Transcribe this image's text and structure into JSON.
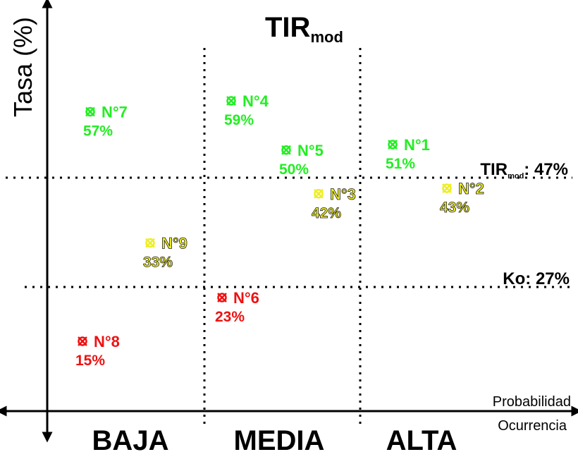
{
  "chart_data": {
    "type": "scatter",
    "title": "TIR",
    "title_subscript": "mod",
    "ylabel": "Tasa (%)",
    "xlabel_top": "Probabilidad",
    "xlabel_bottom": "Ocurrencia",
    "categories": [
      "BAJA",
      "MEDIA",
      "ALTA"
    ],
    "reference_lines": [
      {
        "name": "TIR",
        "subscript": "mod",
        "suffix": ": 47%",
        "value": 47
      },
      {
        "name": "Ko",
        "subscript": "",
        "suffix": ": 27%",
        "value": 27
      }
    ],
    "colors": {
      "high": "#22ee22",
      "mid": "#eeee22",
      "low": "#ee1111"
    },
    "points": [
      {
        "label": "N°1",
        "category": "ALTA",
        "rate": 51,
        "value_label": "51%",
        "color": "#22ee22"
      },
      {
        "label": "N°2",
        "category": "ALTA",
        "rate": 43,
        "value_label": "43%",
        "color": "#eeee22"
      },
      {
        "label": "N°3",
        "category": "MEDIA",
        "rate": 42,
        "value_label": "42%",
        "color": "#eeee22"
      },
      {
        "label": "N°4",
        "category": "MEDIA",
        "rate": 59,
        "value_label": "59%",
        "color": "#22ee22"
      },
      {
        "label": "N°5",
        "category": "MEDIA",
        "rate": 50,
        "value_label": "50%",
        "color": "#22ee22"
      },
      {
        "label": "N°6",
        "category": "MEDIA",
        "rate": 23,
        "value_label": "23%",
        "color": "#ee1111"
      },
      {
        "label": "N°7",
        "category": "BAJA",
        "rate": 57,
        "value_label": "57%",
        "color": "#22ee22"
      },
      {
        "label": "N°8",
        "category": "BAJA",
        "rate": 15,
        "value_label": "15%",
        "color": "#ee1111"
      },
      {
        "label": "N°9",
        "category": "BAJA",
        "rate": 33,
        "value_label": "33%",
        "color": "#eeee22"
      }
    ],
    "grid": false,
    "legend": "none"
  }
}
